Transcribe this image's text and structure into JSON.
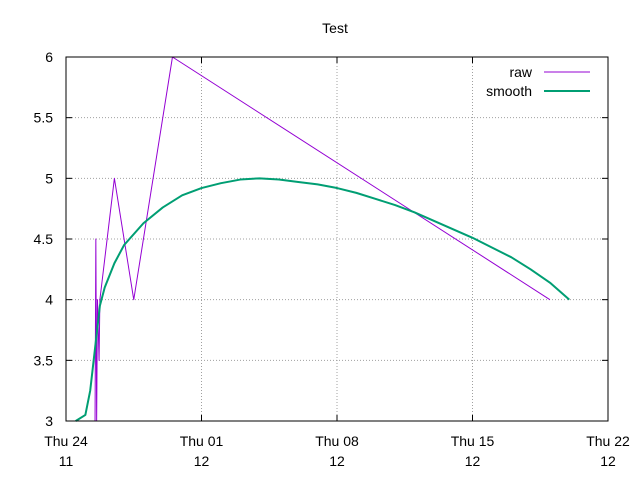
{
  "chart_data": {
    "type": "line",
    "title": "Test",
    "xlabel": "",
    "ylabel": "",
    "x_axis": {
      "type": "date",
      "range": [
        "2016-11-24",
        "2016-12-22"
      ],
      "ticks": [
        {
          "value": "2016-11-24",
          "line1": "Thu 24",
          "line2": "11"
        },
        {
          "value": "2016-12-01",
          "line1": "Thu 01",
          "line2": "12"
        },
        {
          "value": "2016-12-08",
          "line1": "Thu 08",
          "line2": "12"
        },
        {
          "value": "2016-12-15",
          "line1": "Thu 15",
          "line2": "12"
        },
        {
          "value": "2016-12-22",
          "line1": "Thu 22",
          "line2": "12"
        }
      ]
    },
    "y_axis": {
      "range": [
        3,
        6
      ],
      "ticks": [
        3,
        3.5,
        4,
        4.5,
        5,
        5.5,
        6
      ],
      "tick_labels": [
        "3",
        "3.5",
        "4",
        "4.5",
        "5",
        "5.5",
        "6"
      ]
    },
    "grid": true,
    "legend_position": "top-right",
    "series": [
      {
        "name": "raw",
        "color": "#9400d3",
        "points": [
          {
            "x": "2016-11-25T12:00",
            "y": 3.0
          },
          {
            "x": "2016-11-25T13:00",
            "y": 4.5
          },
          {
            "x": "2016-11-25T14:00",
            "y": 3.0
          },
          {
            "x": "2016-11-25T15:00",
            "y": 4.0
          },
          {
            "x": "2016-11-25T17:00",
            "y": 3.5
          },
          {
            "x": "2016-11-25T18:00",
            "y": 4.0
          },
          {
            "x": "2016-11-26T12:00",
            "y": 5.0
          },
          {
            "x": "2016-11-27T12:00",
            "y": 4.0
          },
          {
            "x": "2016-11-29T12:00",
            "y": 6.0
          },
          {
            "x": "2016-12-19T00:00",
            "y": 4.0
          }
        ]
      },
      {
        "name": "smooth",
        "color": "#009e73",
        "points": [
          {
            "x": "2016-11-24T12:00",
            "y": 3.0
          },
          {
            "x": "2016-11-25T00:00",
            "y": 3.05
          },
          {
            "x": "2016-11-25T06:00",
            "y": 3.25
          },
          {
            "x": "2016-11-25T12:00",
            "y": 3.6
          },
          {
            "x": "2016-11-25T18:00",
            "y": 3.95
          },
          {
            "x": "2016-11-26T00:00",
            "y": 4.1
          },
          {
            "x": "2016-11-26T12:00",
            "y": 4.3
          },
          {
            "x": "2016-11-27T00:00",
            "y": 4.45
          },
          {
            "x": "2016-11-28T00:00",
            "y": 4.63
          },
          {
            "x": "2016-11-29T00:00",
            "y": 4.76
          },
          {
            "x": "2016-11-30T00:00",
            "y": 4.86
          },
          {
            "x": "2016-12-01T00:00",
            "y": 4.92
          },
          {
            "x": "2016-12-02T00:00",
            "y": 4.96
          },
          {
            "x": "2016-12-03T00:00",
            "y": 4.99
          },
          {
            "x": "2016-12-04T00:00",
            "y": 5.0
          },
          {
            "x": "2016-12-05T00:00",
            "y": 4.99
          },
          {
            "x": "2016-12-06T00:00",
            "y": 4.97
          },
          {
            "x": "2016-12-07T00:00",
            "y": 4.95
          },
          {
            "x": "2016-12-08T00:00",
            "y": 4.92
          },
          {
            "x": "2016-12-09T00:00",
            "y": 4.88
          },
          {
            "x": "2016-12-10T00:00",
            "y": 4.83
          },
          {
            "x": "2016-12-11T00:00",
            "y": 4.78
          },
          {
            "x": "2016-12-12T00:00",
            "y": 4.72
          },
          {
            "x": "2016-12-13T00:00",
            "y": 4.65
          },
          {
            "x": "2016-12-14T00:00",
            "y": 4.58
          },
          {
            "x": "2016-12-15T00:00",
            "y": 4.51
          },
          {
            "x": "2016-12-16T00:00",
            "y": 4.43
          },
          {
            "x": "2016-12-17T00:00",
            "y": 4.35
          },
          {
            "x": "2016-12-18T00:00",
            "y": 4.25
          },
          {
            "x": "2016-12-19T00:00",
            "y": 4.14
          },
          {
            "x": "2016-12-20T00:00",
            "y": 4.0
          }
        ]
      }
    ]
  }
}
